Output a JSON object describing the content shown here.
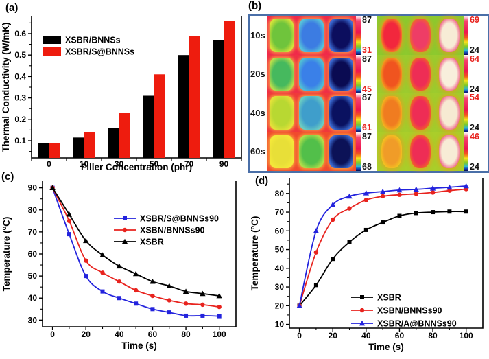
{
  "figure": {
    "panel_labels": {
      "a": "(a)",
      "b": "(b)",
      "c": "(c)",
      "d": "(d)"
    }
  },
  "chart_data": [
    {
      "id": "a",
      "type": "bar",
      "categories": [
        "0",
        "10",
        "30",
        "50",
        "70",
        "90"
      ],
      "series": [
        {
          "name": "XSBR/BNNSs",
          "color": "#000000",
          "values": [
            0.09,
            0.115,
            0.16,
            0.31,
            0.5,
            0.57
          ]
        },
        {
          "name": "XSBR/S@BNNSs",
          "color": "#ee1c0e",
          "values": [
            0.09,
            0.14,
            0.23,
            0.41,
            0.59,
            0.66
          ]
        }
      ],
      "xlabel": "Filler Concentration (phr)",
      "ylabel": "Thermal Conductivity (W/mK)",
      "ylim": [
        0.02,
        0.68
      ],
      "yticks": [
        0.1,
        0.2,
        0.3,
        0.4,
        0.5,
        0.6
      ],
      "grid": false,
      "legend_position": "upper-left"
    },
    {
      "id": "c",
      "type": "line",
      "x": [
        0,
        10,
        20,
        30,
        40,
        50,
        60,
        70,
        80,
        90,
        100
      ],
      "series": [
        {
          "name": "XSBR/S@BNNSs90",
          "color": "#2323dd",
          "marker": "square",
          "values": [
            90,
            69,
            50,
            43,
            40,
            37.5,
            35,
            33.5,
            32,
            32,
            31.8
          ]
        },
        {
          "name": "XSBN/BNNSs90",
          "color": "#e8231e",
          "marker": "circle",
          "values": [
            90,
            75,
            57,
            51.5,
            47.5,
            43.5,
            41,
            39,
            37.5,
            37,
            36
          ]
        },
        {
          "name": "XSBR",
          "color": "#000000",
          "marker": "triangle",
          "values": [
            90,
            78,
            66,
            59.5,
            54.5,
            51,
            47.5,
            45.5,
            43,
            42,
            41
          ]
        }
      ],
      "xlabel": "Time (s)",
      "ylabel": "Temperature (°C)",
      "xlim": [
        -6,
        110
      ],
      "ylim": [
        27,
        93
      ],
      "xticks": [
        0,
        20,
        40,
        60,
        80,
        100
      ],
      "yticks": [
        30,
        40,
        50,
        60,
        70,
        80,
        90
      ],
      "grid": false,
      "legend_position": "center-right-upper"
    },
    {
      "id": "d",
      "type": "line",
      "x": [
        0,
        10,
        20,
        30,
        40,
        50,
        60,
        70,
        80,
        90,
        100
      ],
      "series": [
        {
          "name": "XSBR",
          "color": "#000000",
          "marker": "square",
          "values": [
            20,
            31,
            45,
            54,
            60.5,
            64.5,
            68,
            69.5,
            70,
            70.3,
            70.3
          ]
        },
        {
          "name": "XSBN/BNNSs90",
          "color": "#e8231e",
          "marker": "circle",
          "values": [
            20,
            48.5,
            66,
            72,
            76.5,
            78.5,
            79.3,
            79.8,
            80.5,
            81.5,
            82.3
          ]
        },
        {
          "name": "XSBR/A@BNNSs90",
          "color": "#2323dd",
          "marker": "triangle",
          "values": [
            20,
            60,
            74,
            78.5,
            80.2,
            81,
            81.8,
            82.2,
            82.8,
            83.3,
            84
          ]
        }
      ],
      "xlabel": "Time (s)",
      "ylabel": "Temperature (°C)",
      "xlim": [
        -6,
        110
      ],
      "ylim": [
        8,
        88
      ],
      "xticks": [
        0,
        20,
        40,
        60,
        80,
        100
      ],
      "yticks": [
        10,
        20,
        30,
        40,
        50,
        60,
        70,
        80
      ],
      "grid": false,
      "legend_position": "lower-right"
    }
  ],
  "panel_b": {
    "frame_color": "#4a6fa8",
    "rows": [
      {
        "time": "10s",
        "left_top": {
          "text": "87",
          "color": "#111111"
        },
        "left_bottom": {
          "text": "31",
          "color": "#e8231e"
        },
        "right_top": {
          "text": "69",
          "color": "#e8231e"
        },
        "right_bottom": {
          "text": "24",
          "color": "#111111"
        },
        "left_bg": "#f02a4a",
        "right_bg": "#8dc92e",
        "left_cells": [
          {
            "fill": "#6fc43c",
            "ring": "#d8e53a"
          },
          {
            "fill": "#3c7ce2",
            "ring": "#59c8d8"
          },
          {
            "fill": "#0c0e5e",
            "ring": "#3d6fd8"
          }
        ],
        "right_cells": [
          {
            "fill": "#f2273d",
            "ring": "#f59e1e"
          },
          {
            "fill": "#ee3d66",
            "ring": "#f2701e"
          },
          {
            "fill": "#f7ecd6",
            "ring": "#ef477a"
          }
        ]
      },
      {
        "time": "20s",
        "left_top": {
          "text": "87",
          "color": "#111111"
        },
        "left_bottom": {
          "text": "45",
          "color": "#e8231e"
        },
        "right_top": {
          "text": "64",
          "color": "#e8231e"
        },
        "right_bottom": {
          "text": "24",
          "color": "#111111"
        },
        "left_bg": "#ef3046",
        "right_bg": "#9ccb2e",
        "left_cells": [
          {
            "fill": "#46b95e",
            "ring": "#bfe04a"
          },
          {
            "fill": "#3a80e8",
            "ring": "#52c2d2"
          },
          {
            "fill": "#0a0b52",
            "ring": "#3d6fd8"
          }
        ],
        "right_cells": [
          {
            "fill": "#f0541f",
            "ring": "#f5b31e"
          },
          {
            "fill": "#ee2d55",
            "ring": "#f2701e"
          },
          {
            "fill": "#f8efdc",
            "ring": "#ef477a"
          }
        ]
      },
      {
        "time": "40s",
        "left_top": {
          "text": "87",
          "color": "#111111"
        },
        "left_bottom": {
          "text": "61",
          "color": "#e8231e"
        },
        "right_top": {
          "text": "54",
          "color": "#e8231e"
        },
        "right_bottom": {
          "text": "24",
          "color": "#111111"
        },
        "left_bg": "#f0393b",
        "right_bg": "#a3cc2c",
        "left_cells": [
          {
            "fill": "#b8d832",
            "ring": "#e8e23a"
          },
          {
            "fill": "#3f9ecb",
            "ring": "#6fd0c0"
          },
          {
            "fill": "#0a1160",
            "ring": "#3d6fd8"
          }
        ],
        "right_cells": [
          {
            "fill": "#f07c20",
            "ring": "#f5c41e"
          },
          {
            "fill": "#ee2d55",
            "ring": "#f2701e"
          },
          {
            "fill": "#f6ead2",
            "ring": "#ef477a"
          }
        ]
      },
      {
        "time": "60s",
        "left_top": {
          "text": "87",
          "color": "#111111"
        },
        "left_bottom": {
          "text": "68",
          "color": "#111111"
        },
        "right_top": {
          "text": "46",
          "color": "#e8231e"
        },
        "right_bottom": {
          "text": "24",
          "color": "#111111"
        },
        "left_bg": "#f14a2e",
        "right_bg": "#aace2a",
        "left_cells": [
          {
            "fill": "#e8df38",
            "ring": "#f5e93a"
          },
          {
            "fill": "#52bf4a",
            "ring": "#b5e04a"
          },
          {
            "fill": "#0c1257",
            "ring": "#3d6fd8"
          }
        ],
        "right_cells": [
          {
            "fill": "#f09c28",
            "ring": "#f5ce1e"
          },
          {
            "fill": "#ee2d55",
            "ring": "#f2701e"
          },
          {
            "fill": "#f7ecd6",
            "ring": "#ef477a"
          }
        ]
      }
    ]
  }
}
